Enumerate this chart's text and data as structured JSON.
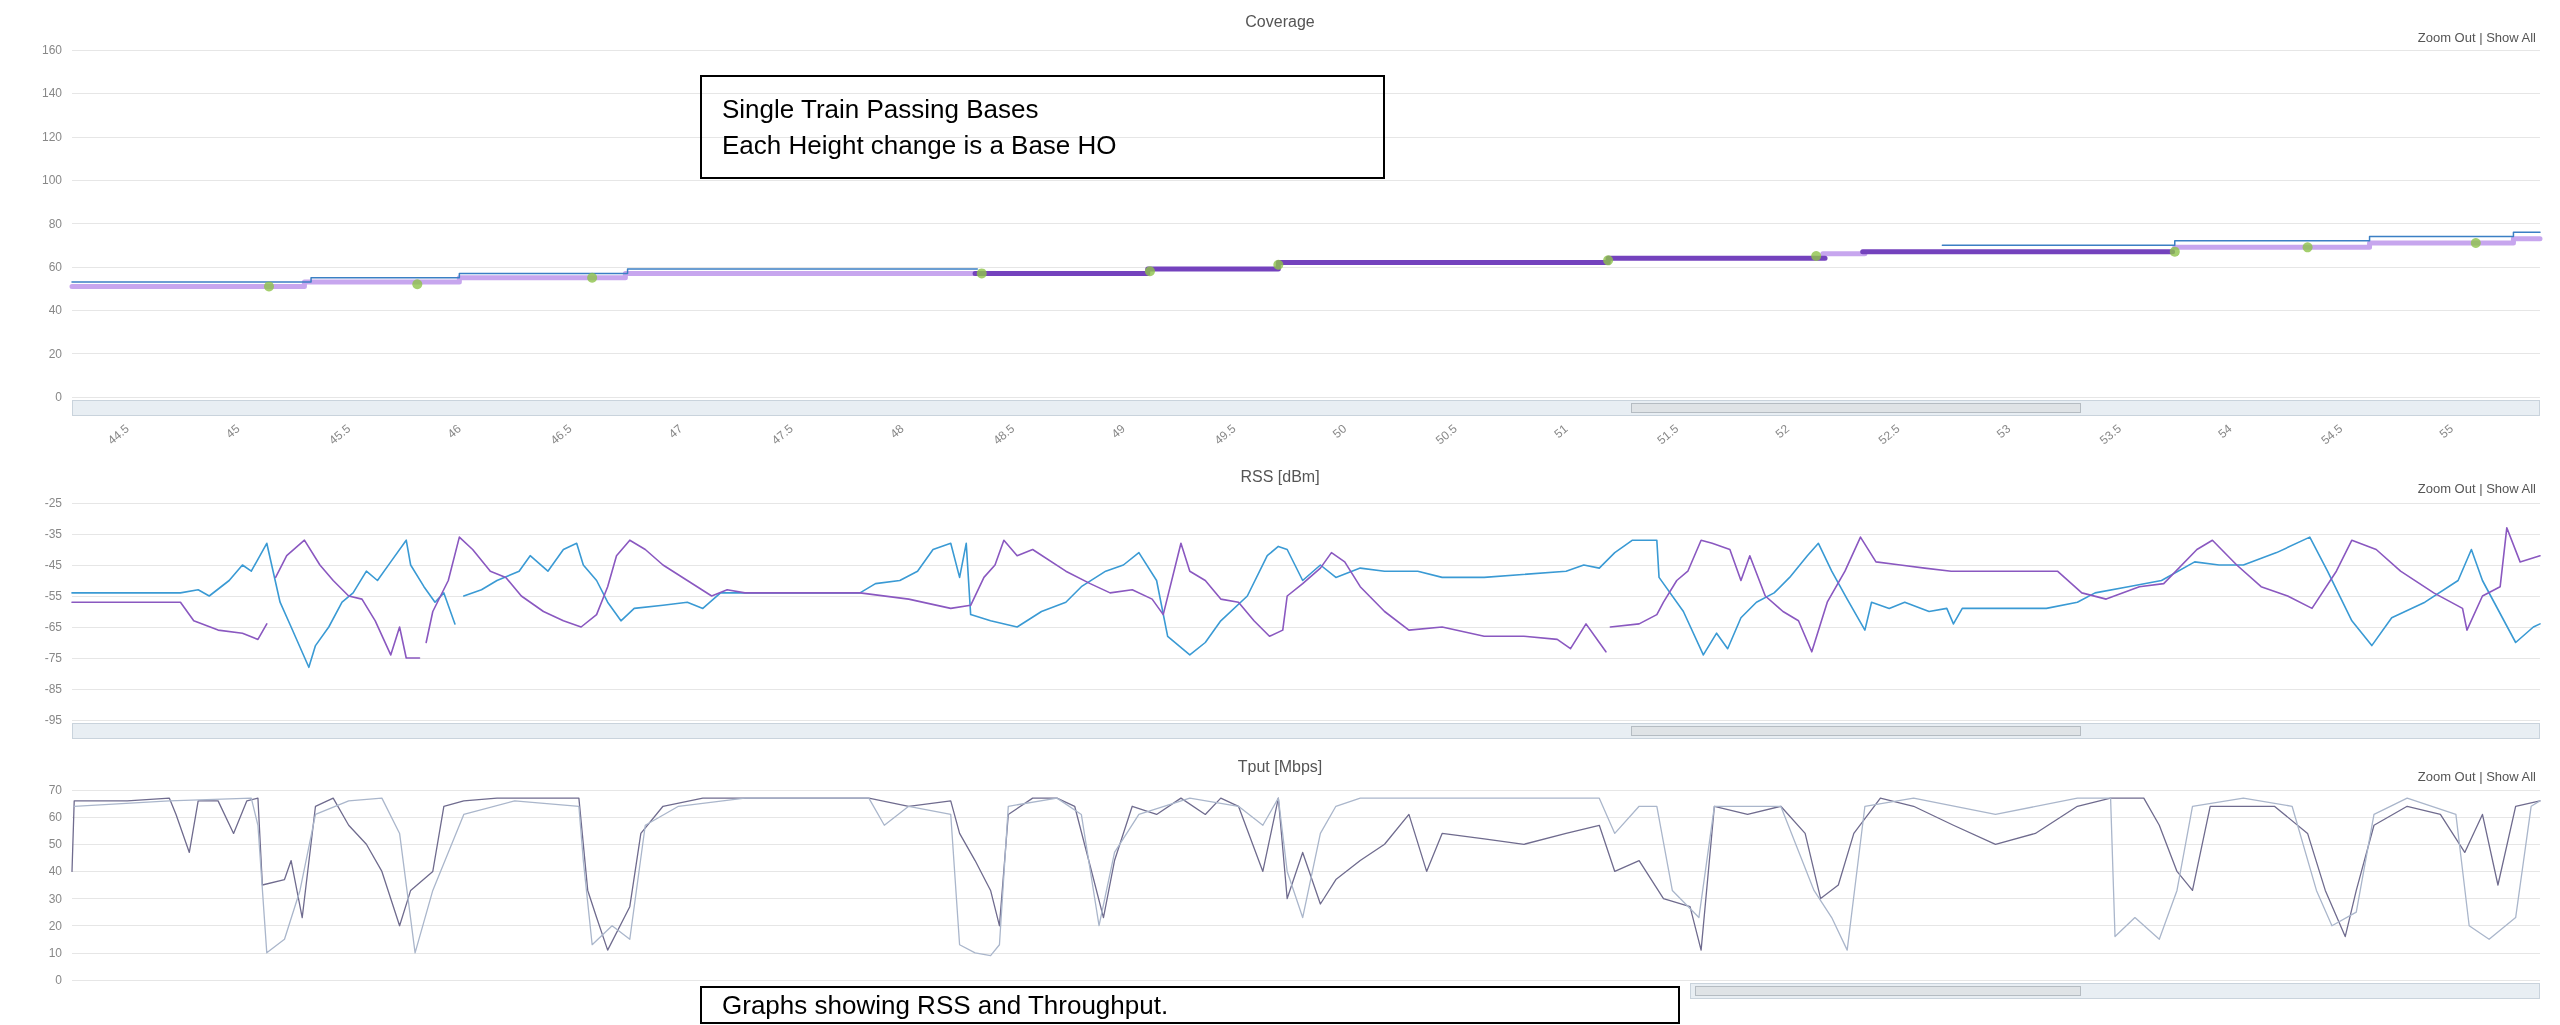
{
  "chart_data": [
    {
      "type": "step",
      "title": "Coverage",
      "annotations": [
        "Single Train Passing Bases\nEach Height change is a Base HO",
        "Zoom Out | Show All"
      ],
      "xlim": [
        44.25,
        55.4
      ],
      "xticks": [
        44.5,
        45,
        45.5,
        46,
        46.5,
        47,
        47.5,
        48,
        48.5,
        49,
        49.5,
        50,
        50.5,
        51,
        51.5,
        52,
        52.5,
        53,
        53.5,
        54,
        54.5,
        55
      ],
      "ylim": [
        0,
        160
      ],
      "yticks": [
        0,
        20,
        40,
        60,
        80,
        100,
        120,
        140,
        160
      ],
      "grid": "y",
      "marker": "none",
      "series": [
        {
          "color": "#c7a6ee",
          "x": [
            44.25,
            45.3,
            46.0,
            46.75,
            48.33,
            48.34,
            52.16,
            52.34,
            52.35,
            53.75,
            54.63,
            55.28,
            55.4
          ],
          "values": [
            51,
            53,
            55,
            57,
            57,
            null,
            66,
            66,
            null,
            69,
            71,
            73,
            73
          ]
        },
        {
          "color": "#7442bd",
          "x": [
            48.33,
            49.11,
            49.7,
            51.19,
            52.16,
            52.17,
            52.34,
            53.74
          ],
          "values": [
            57,
            59,
            62,
            64,
            64,
            null,
            67,
            67
          ]
        },
        {
          "color": "#3b7fc4",
          "x": [
            44.25,
            45.33,
            46.0,
            46.76,
            48.33,
            48.34,
            52.7,
            53.75,
            54.63,
            55.28,
            55.4
          ],
          "values": [
            53,
            55,
            57,
            59,
            59,
            null,
            70,
            72,
            74,
            76,
            76
          ]
        },
        {
          "type": "scatter",
          "marker": "circle",
          "color": "#8dc34a",
          "x": [
            45.14,
            45.81,
            46.6,
            48.36,
            49.12,
            49.7,
            51.19,
            52.13,
            53.75,
            54.35,
            55.11
          ],
          "values": [
            51,
            52,
            55,
            57,
            58,
            61,
            63,
            65,
            67,
            69,
            71
          ]
        }
      ]
    },
    {
      "type": "line",
      "title": "RSS [dBm]",
      "annotations": [
        "Zoom Out | Show All"
      ],
      "xlim": [
        44.25,
        55.4
      ],
      "ylim": [
        -95,
        -25
      ],
      "yticks": [
        -95,
        -85,
        -75,
        -65,
        -55,
        -45,
        -35,
        -25
      ],
      "grid": "y",
      "tick_labels": "y",
      "marker": "none",
      "series": [
        {
          "color": "#3a9ad4",
          "x": [
            44.25,
            44.74,
            44.82,
            44.87,
            44.96,
            45.02,
            45.06,
            45.13,
            45.19,
            45.24,
            45.32,
            45.35,
            45.41,
            45.47,
            45.52,
            45.58,
            45.63,
            45.69,
            45.76,
            45.78,
            45.84,
            45.89,
            45.93,
            45.98,
            46.0,
            46.02,
            46.1,
            46.17,
            46.27,
            46.32,
            46.4,
            46.47,
            46.53,
            46.56,
            46.62,
            46.67,
            46.73,
            46.79,
            46.92,
            47.03,
            47.1,
            47.18,
            47.29,
            47.81,
            47.88,
            47.99,
            48.07,
            48.14,
            48.22,
            48.26,
            48.29,
            48.31,
            48.4,
            48.52,
            48.63,
            48.74,
            48.81,
            48.92,
            49.0,
            49.07,
            49.15,
            49.2,
            49.3,
            49.37,
            49.44,
            49.56,
            49.65,
            49.7,
            49.74,
            49.81,
            49.89,
            49.96,
            50.07,
            50.18,
            50.33,
            50.44,
            50.63,
            51.0,
            51.08,
            51.15,
            51.22,
            51.3,
            51.41,
            51.42,
            51.53,
            51.62,
            51.68,
            51.73,
            51.79,
            51.86,
            51.94,
            52.01,
            52.09,
            52.14,
            52.2,
            52.27,
            52.35,
            52.38,
            52.46,
            52.53,
            52.64,
            52.72,
            52.75,
            52.79,
            52.94,
            53.17,
            53.31,
            53.39,
            53.54,
            53.69,
            53.84,
            53.95,
            54.06,
            54.21,
            54.36,
            54.44,
            54.55,
            54.64,
            54.73,
            54.88,
            55.03,
            55.09,
            55.14,
            55.29,
            55.37,
            55.4
          ],
          "values": [
            -54,
            -54,
            -53,
            -55,
            -50,
            -45,
            -47,
            -38,
            -57,
            -65,
            -78,
            -71,
            -65,
            -57,
            -54,
            -47,
            -50,
            -44,
            -37,
            -45,
            -52,
            -57,
            -54,
            -64,
            null,
            -55,
            -53,
            -50,
            -47,
            -42,
            -47,
            -40,
            -38,
            -45,
            -50,
            -57,
            -63,
            -59,
            -58,
            -57,
            -59,
            -54,
            -54,
            -54,
            -51,
            -50,
            -47,
            -40,
            -38,
            -49,
            -38,
            -61,
            -63,
            -65,
            -60,
            -57,
            -52,
            -47,
            -45,
            -41,
            -50,
            -68,
            -74,
            -70,
            -63,
            -55,
            -42,
            -39,
            -40,
            -50,
            -45,
            -49,
            -46,
            -47,
            -47,
            -49,
            -49,
            -47,
            -45,
            -46,
            -41,
            -37,
            -37,
            -49,
            -60,
            -74,
            -67,
            -72,
            -62,
            -57,
            -54,
            -49,
            -42,
            -38,
            -47,
            -56,
            -66,
            -57,
            -59,
            -57,
            -60,
            -59,
            -64,
            -59,
            -59,
            -59,
            -57,
            -54,
            -52,
            -50,
            -44,
            -45,
            -45,
            -41,
            -36,
            -47,
            -63,
            -71,
            -62,
            -57,
            -50,
            -40,
            -50,
            -70,
            -65,
            -64
          ]
        },
        {
          "color": "#8a58c0",
          "x": [
            44.25,
            44.74,
            44.8,
            44.91,
            45.02,
            45.09,
            45.13,
            45.15,
            45.17,
            45.22,
            45.3,
            45.37,
            45.43,
            45.5,
            45.56,
            45.62,
            45.69,
            45.73,
            45.76,
            45.82,
            45.84,
            45.85,
            45.88,
            45.95,
            46.0,
            46.06,
            46.14,
            46.21,
            46.28,
            46.38,
            46.47,
            46.55,
            46.62,
            46.67,
            46.71,
            46.77,
            46.84,
            46.92,
            47.03,
            47.14,
            47.21,
            47.29,
            47.81,
            48.03,
            48.22,
            48.31,
            48.37,
            48.42,
            48.46,
            48.52,
            48.59,
            48.74,
            48.85,
            48.94,
            49.04,
            49.13,
            49.18,
            49.26,
            49.3,
            49.37,
            49.44,
            49.52,
            49.59,
            49.66,
            49.72,
            49.74,
            49.81,
            49.89,
            49.94,
            50.0,
            50.07,
            50.18,
            50.29,
            50.44,
            50.63,
            50.81,
            50.96,
            51.02,
            51.09,
            51.15,
            51.18,
            51.19,
            51.2,
            51.33,
            51.41,
            51.44,
            51.5,
            51.55,
            51.61,
            51.66,
            51.74,
            51.79,
            51.83,
            51.9,
            51.98,
            52.05,
            52.11,
            52.18,
            52.26,
            52.33,
            52.4,
            52.51,
            52.62,
            52.74,
            52.92,
            53.22,
            53.33,
            53.44,
            53.59,
            53.7,
            53.85,
            53.92,
            54.03,
            54.14,
            54.26,
            54.37,
            54.48,
            54.55,
            54.66,
            54.77,
            54.92,
            55.05,
            55.07,
            55.14,
            55.22,
            55.25,
            55.31,
            55.4
          ],
          "values": [
            -57,
            -57,
            -63,
            -66,
            -67,
            -69,
            -64,
            null,
            -49,
            -42,
            -37,
            -45,
            -50,
            -55,
            -56,
            -63,
            -74,
            -65,
            -75,
            -75,
            null,
            -70,
            -60,
            -50,
            -36,
            -40,
            -47,
            -49,
            -55,
            -60,
            -63,
            -65,
            -61,
            -52,
            -42,
            -37,
            -40,
            -45,
            -50,
            -55,
            -53,
            -54,
            -54,
            -56,
            -59,
            -58,
            -49,
            -45,
            -37,
            -42,
            -40,
            -47,
            -51,
            -54,
            -53,
            -56,
            -61,
            -38,
            -47,
            -50,
            -56,
            -57,
            -63,
            -68,
            -66,
            -55,
            -51,
            -46,
            -41,
            -44,
            -52,
            -60,
            -66,
            -65,
            -68,
            -68,
            -69,
            -72,
            -64,
            -70,
            -73,
            null,
            -65,
            -64,
            -61,
            -57,
            -50,
            -47,
            -37,
            -38,
            -40,
            -50,
            -42,
            -55,
            -60,
            -63,
            -73,
            -57,
            -47,
            -36,
            -44,
            -45,
            -46,
            -47,
            -47,
            -47,
            -54,
            -56,
            -52,
            -51,
            -40,
            -37,
            -45,
            -52,
            -55,
            -59,
            -47,
            -37,
            -40,
            -47,
            -54,
            -59,
            -66,
            -55,
            -52,
            -33,
            -44,
            -42
          ]
        }
      ]
    },
    {
      "type": "line",
      "title": "Tput [Mbps]",
      "annotations": [
        "Zoom Out | Show All",
        "Graphs showing RSS and Throughput."
      ],
      "xlim": [
        44.25,
        55.4
      ],
      "ylim": [
        0,
        70
      ],
      "yticks": [
        0,
        10,
        20,
        30,
        40,
        50,
        60,
        70
      ],
      "grid": "y",
      "tick_labels": "y",
      "marker": "none",
      "series": [
        {
          "color": "#6f6b8e",
          "x": [
            44.25,
            44.26,
            44.5,
            44.69,
            44.72,
            44.78,
            44.82,
            44.91,
            44.98,
            45.04,
            45.09,
            45.11,
            45.21,
            45.24,
            45.29,
            45.35,
            45.43,
            45.5,
            45.58,
            45.65,
            45.73,
            45.78,
            45.88,
            45.93,
            46.02,
            46.17,
            46.36,
            46.54,
            46.58,
            46.62,
            46.67,
            46.77,
            46.82,
            46.92,
            47.1,
            47.29,
            47.85,
            48.03,
            48.22,
            48.26,
            48.33,
            48.4,
            48.44,
            48.48,
            48.59,
            48.7,
            48.78,
            48.85,
            48.91,
            48.96,
            49.04,
            49.15,
            49.26,
            49.37,
            49.44,
            49.52,
            49.63,
            49.7,
            49.74,
            49.81,
            49.89,
            49.96,
            50.07,
            50.18,
            50.29,
            50.37,
            50.44,
            50.63,
            50.81,
            51.0,
            51.15,
            51.22,
            51.33,
            51.44,
            51.56,
            51.61,
            51.67,
            51.82,
            51.97,
            52.08,
            52.15,
            52.23,
            52.3,
            52.42,
            52.57,
            52.75,
            52.94,
            53.12,
            53.31,
            53.46,
            53.61,
            53.68,
            53.76,
            53.83,
            53.91,
            54.06,
            54.2,
            54.35,
            54.43,
            54.52,
            54.57,
            54.65,
            54.8,
            54.95,
            55.06,
            55.14,
            55.21,
            55.29,
            55.4
          ],
          "values": [
            40,
            66,
            66,
            67,
            61,
            47,
            66,
            66,
            54,
            66,
            67,
            35,
            37,
            44,
            23,
            64,
            67,
            57,
            50,
            40,
            20,
            33,
            40,
            64,
            66,
            67,
            67,
            67,
            33,
            23,
            11,
            27,
            54,
            64,
            67,
            67,
            67,
            64,
            66,
            54,
            44,
            33,
            20,
            61,
            67,
            67,
            64,
            42,
            23,
            44,
            64,
            61,
            67,
            61,
            67,
            64,
            40,
            67,
            30,
            47,
            28,
            37,
            44,
            50,
            61,
            40,
            54,
            52,
            50,
            54,
            57,
            40,
            44,
            30,
            27,
            11,
            64,
            61,
            64,
            54,
            30,
            35,
            54,
            67,
            64,
            57,
            50,
            54,
            64,
            67,
            67,
            57,
            40,
            33,
            64,
            64,
            64,
            54,
            33,
            16,
            33,
            57,
            64,
            61,
            47,
            61,
            35,
            64,
            66
          ]
        },
        {
          "color": "#aab6cb",
          "x": [
            44.26,
            44.69,
            45.06,
            45.09,
            45.13,
            45.21,
            45.28,
            45.35,
            45.5,
            45.65,
            45.73,
            45.8,
            45.88,
            45.95,
            46.02,
            46.25,
            46.54,
            46.56,
            46.6,
            46.69,
            46.77,
            46.84,
            46.99,
            47.29,
            47.85,
            47.92,
            48.03,
            48.22,
            48.26,
            48.33,
            48.4,
            48.44,
            48.48,
            48.7,
            48.81,
            48.89,
            48.96,
            49.07,
            49.3,
            49.52,
            49.63,
            49.7,
            49.74,
            49.81,
            49.89,
            49.96,
            50.07,
            50.33,
            50.7,
            51.08,
            51.15,
            51.22,
            51.33,
            51.41,
            51.48,
            51.6,
            51.67,
            51.97,
            52.12,
            52.2,
            52.27,
            52.35,
            52.57,
            52.94,
            53.31,
            53.46,
            53.48,
            53.57,
            53.68,
            53.76,
            53.83,
            54.06,
            54.28,
            54.39,
            54.46,
            54.57,
            54.65,
            54.8,
            55.02,
            55.08,
            55.17,
            55.29,
            55.36,
            55.4
          ],
          "values": [
            64,
            66,
            67,
            57,
            10,
            15,
            33,
            61,
            66,
            67,
            54,
            10,
            33,
            47,
            61,
            66,
            64,
            44,
            13,
            20,
            15,
            57,
            64,
            67,
            67,
            57,
            64,
            61,
            13,
            10,
            9,
            13,
            64,
            67,
            61,
            20,
            47,
            61,
            67,
            64,
            57,
            67,
            40,
            23,
            54,
            64,
            67,
            67,
            67,
            67,
            67,
            54,
            64,
            64,
            33,
            23,
            64,
            64,
            33,
            23,
            11,
            64,
            67,
            61,
            67,
            67,
            16,
            23,
            15,
            33,
            64,
            67,
            64,
            33,
            20,
            25,
            61,
            67,
            61,
            20,
            15,
            23,
            64,
            66
          ]
        }
      ]
    }
  ]
}
